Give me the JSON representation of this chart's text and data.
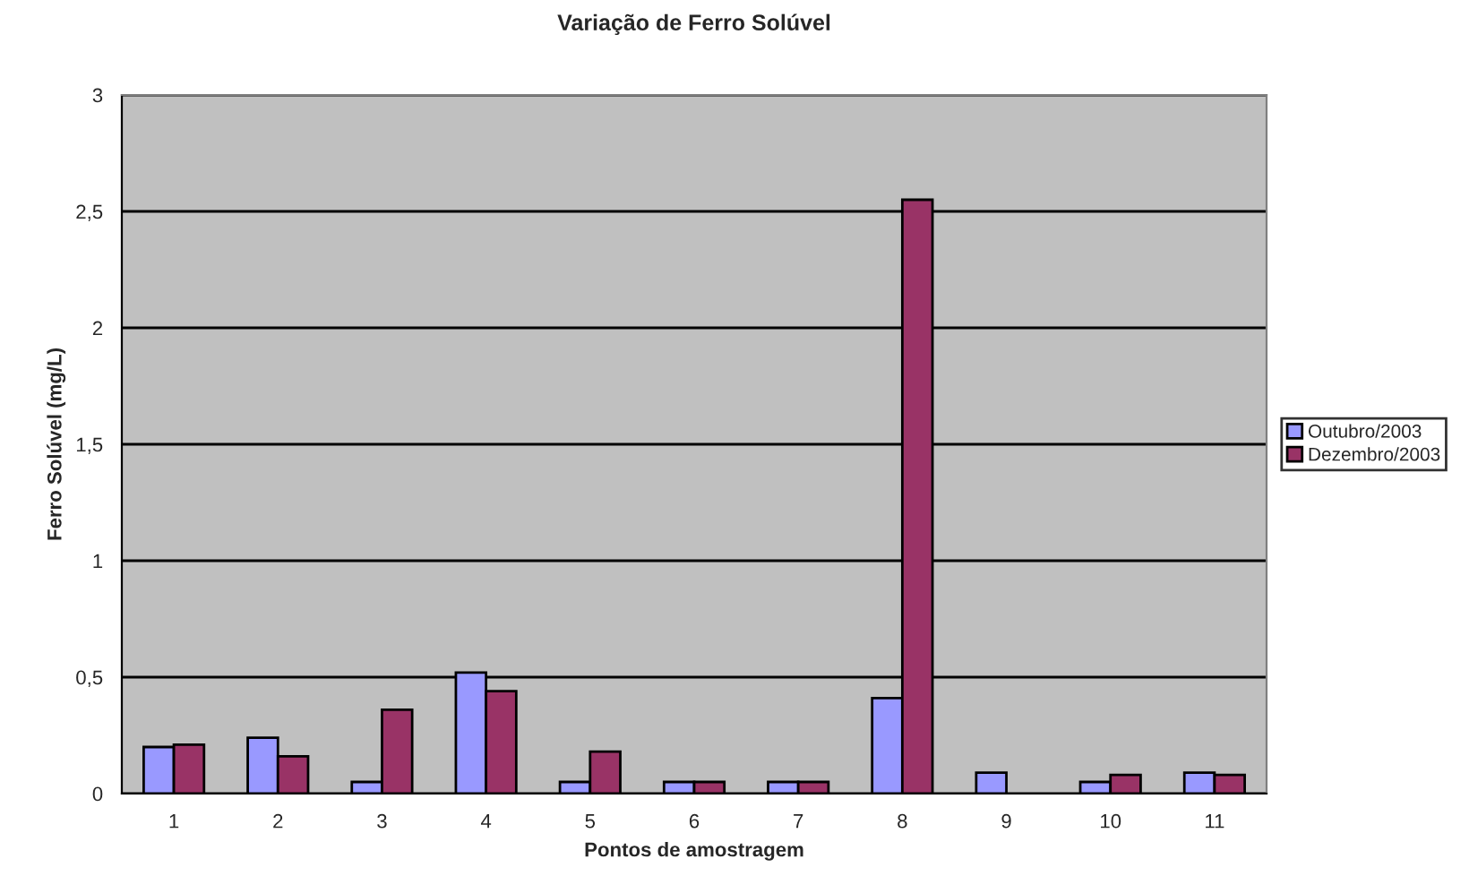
{
  "chart_data": {
    "type": "bar",
    "title": "Variação de Ferro Solúvel",
    "xlabel": "Pontos de amostragem",
    "ylabel": "Ferro Solúvel (mg/L)",
    "categories": [
      "1",
      "2",
      "3",
      "4",
      "5",
      "6",
      "7",
      "8",
      "9",
      "10",
      "11"
    ],
    "series": [
      {
        "name": "Outubro/2003",
        "color": "#9999ff",
        "values": [
          0.2,
          0.24,
          0.05,
          0.52,
          0.05,
          0.05,
          0.05,
          0.41,
          0.09,
          0.05,
          0.09
        ]
      },
      {
        "name": "Dezembro/2003",
        "color": "#993366",
        "values": [
          0.21,
          0.16,
          0.36,
          0.44,
          0.18,
          0.05,
          0.05,
          2.55,
          null,
          0.08,
          0.08
        ]
      }
    ],
    "ylim": [
      0,
      3
    ],
    "yticks": [
      0,
      {
        "value": 0.5,
        "label": "0,5"
      },
      1,
      {
        "value": 1.5,
        "label": "1,5"
      },
      2,
      {
        "value": 2.5,
        "label": "2,5"
      },
      3
    ],
    "grid": "y",
    "legend": "right"
  }
}
